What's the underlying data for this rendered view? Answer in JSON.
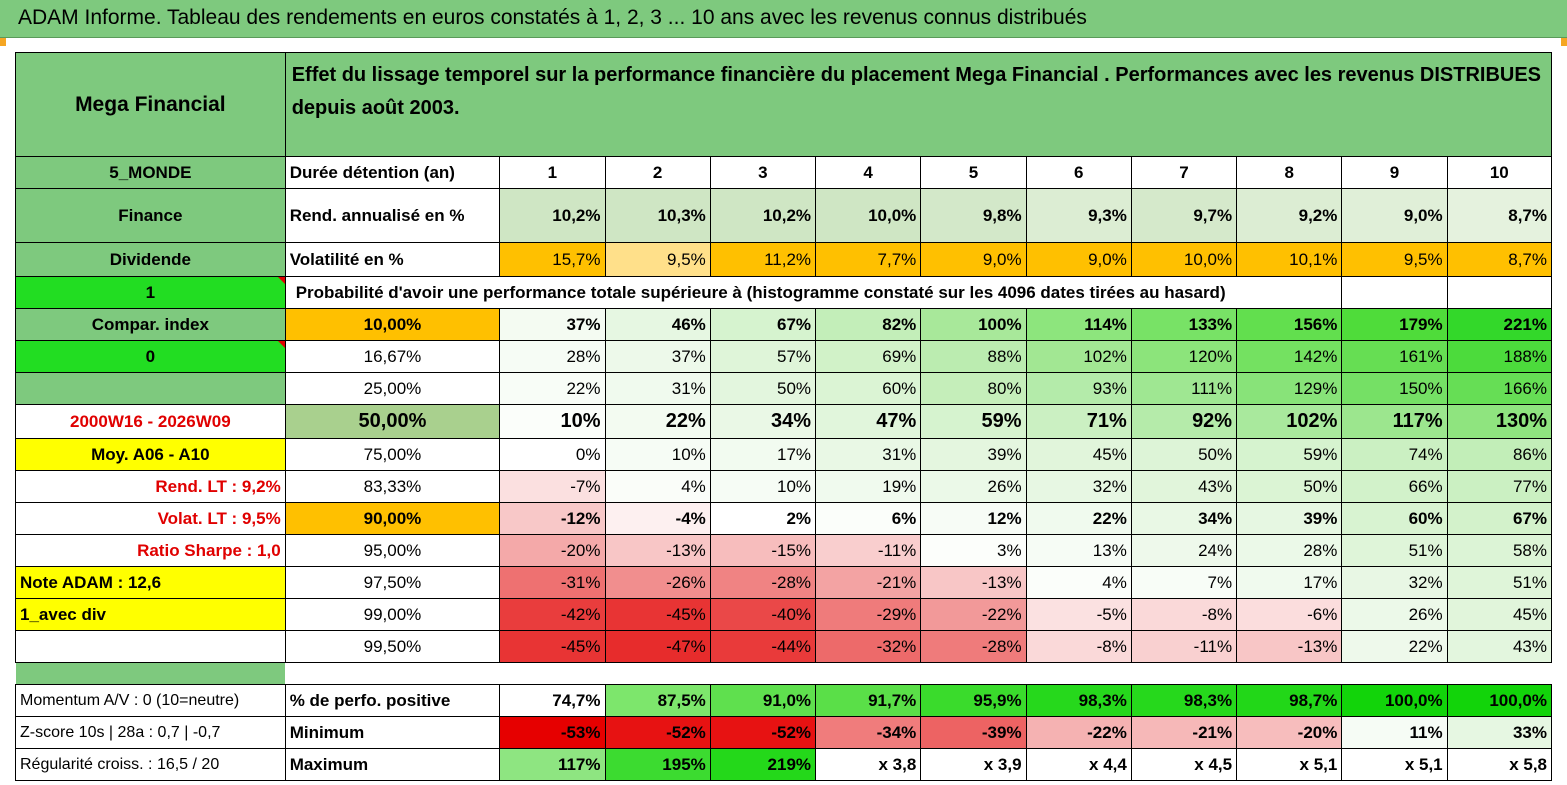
{
  "title": "ADAM Informe. Tableau des rendements en euros constatés à 1, 2, 3 ... 10 ans avec les revenus connus distribués",
  "header": {
    "fund_name": "Mega Financial",
    "description": "Effet du lissage temporel sur la performance financière du placement Mega Financial . Performances avec les revenus DISTRIBUES depuis août 2003."
  },
  "side": {
    "zone": "5_MONDE",
    "sector": "Finance",
    "style": "Dividende",
    "flag1": "1",
    "compar_index": "Compar. index",
    "flag0": "0",
    "period": "2000W16 - 2026W09",
    "moy": "Moy. A06 - A10",
    "rend_lt": "Rend. LT :   9,2%",
    "volat_lt": "Volat. LT :   9,5%",
    "sharpe": "Ratio Sharpe :    1,0",
    "note": "Note ADAM : 12,6",
    "avec_div": "1_avec div",
    "momentum": "Momentum A/V : 0 (10=neutre)",
    "zscore": "Z-score 10s | 28a : 0,7 | -0,7",
    "regularite": "Régularité croiss. : 16,5 / 20"
  },
  "rows": {
    "duree_label": "Durée détention (an)",
    "years": [
      "1",
      "2",
      "3",
      "4",
      "5",
      "6",
      "7",
      "8",
      "9",
      "10"
    ],
    "rend_label": "Rend. annualisé en %",
    "rend": [
      "10,2%",
      "10,3%",
      "10,2%",
      "10,0%",
      "9,8%",
      "9,3%",
      "9,7%",
      "9,2%",
      "9,0%",
      "8,7%"
    ],
    "vol_label": "Volatilité en %",
    "vol": [
      "15,7%",
      "9,5%",
      "11,2%",
      "7,7%",
      "9,0%",
      "9,0%",
      "10,0%",
      "10,1%",
      "9,5%",
      "8,7%"
    ],
    "proba_label": "Probabilité d'avoir une performance totale supérieure à (histogramme constaté sur les 4096 dates tirées au hasard)"
  },
  "percentiles": [
    {
      "p": "10,00%",
      "v": [
        "37%",
        "46%",
        "67%",
        "82%",
        "100%",
        "114%",
        "133%",
        "156%",
        "179%",
        "221%"
      ]
    },
    {
      "p": "16,67%",
      "v": [
        "28%",
        "37%",
        "57%",
        "69%",
        "88%",
        "102%",
        "120%",
        "142%",
        "161%",
        "188%"
      ]
    },
    {
      "p": "25,00%",
      "v": [
        "22%",
        "31%",
        "50%",
        "60%",
        "80%",
        "93%",
        "111%",
        "129%",
        "150%",
        "166%"
      ]
    },
    {
      "p": "50,00%",
      "v": [
        "10%",
        "22%",
        "34%",
        "47%",
        "59%",
        "71%",
        "92%",
        "102%",
        "117%",
        "130%"
      ]
    },
    {
      "p": "75,00%",
      "v": [
        "0%",
        "10%",
        "17%",
        "31%",
        "39%",
        "45%",
        "50%",
        "59%",
        "74%",
        "86%"
      ]
    },
    {
      "p": "83,33%",
      "v": [
        "-7%",
        "4%",
        "10%",
        "19%",
        "26%",
        "32%",
        "43%",
        "50%",
        "66%",
        "77%"
      ]
    },
    {
      "p": "90,00%",
      "v": [
        "-12%",
        "-4%",
        "2%",
        "6%",
        "12%",
        "22%",
        "34%",
        "39%",
        "60%",
        "67%"
      ]
    },
    {
      "p": "95,00%",
      "v": [
        "-20%",
        "-13%",
        "-15%",
        "-11%",
        "3%",
        "13%",
        "24%",
        "28%",
        "51%",
        "58%"
      ]
    },
    {
      "p": "97,50%",
      "v": [
        "-31%",
        "-26%",
        "-28%",
        "-21%",
        "-13%",
        "4%",
        "7%",
        "17%",
        "32%",
        "51%"
      ]
    },
    {
      "p": "99,00%",
      "v": [
        "-42%",
        "-45%",
        "-40%",
        "-29%",
        "-22%",
        "-5%",
        "-8%",
        "-6%",
        "26%",
        "45%"
      ]
    },
    {
      "p": "99,50%",
      "v": [
        "-45%",
        "-47%",
        "-44%",
        "-32%",
        "-28%",
        "-8%",
        "-11%",
        "-13%",
        "22%",
        "43%"
      ]
    }
  ],
  "stats": {
    "pos_label": "% de perfo. positive",
    "pos": [
      "74,7%",
      "87,5%",
      "91,0%",
      "91,7%",
      "95,9%",
      "98,3%",
      "98,3%",
      "98,7%",
      "100,0%",
      "100,0%"
    ],
    "min_label": "Minimum",
    "min": [
      "-53%",
      "-52%",
      "-52%",
      "-34%",
      "-39%",
      "-22%",
      "-21%",
      "-20%",
      "11%",
      "33%"
    ],
    "max_label": "Maximum",
    "max": [
      "117%",
      "195%",
      "219%",
      "x 3,8",
      "x 3,9",
      "x 4,4",
      "x 4,5",
      "x 5,1",
      "x 5,1",
      "x 5,8"
    ]
  },
  "colors": {
    "header_green": "#7ec97e",
    "bright_green": "#22dd22",
    "yellow": "#ffff00",
    "orange": "#ffc000",
    "red_text": "#e00000"
  }
}
